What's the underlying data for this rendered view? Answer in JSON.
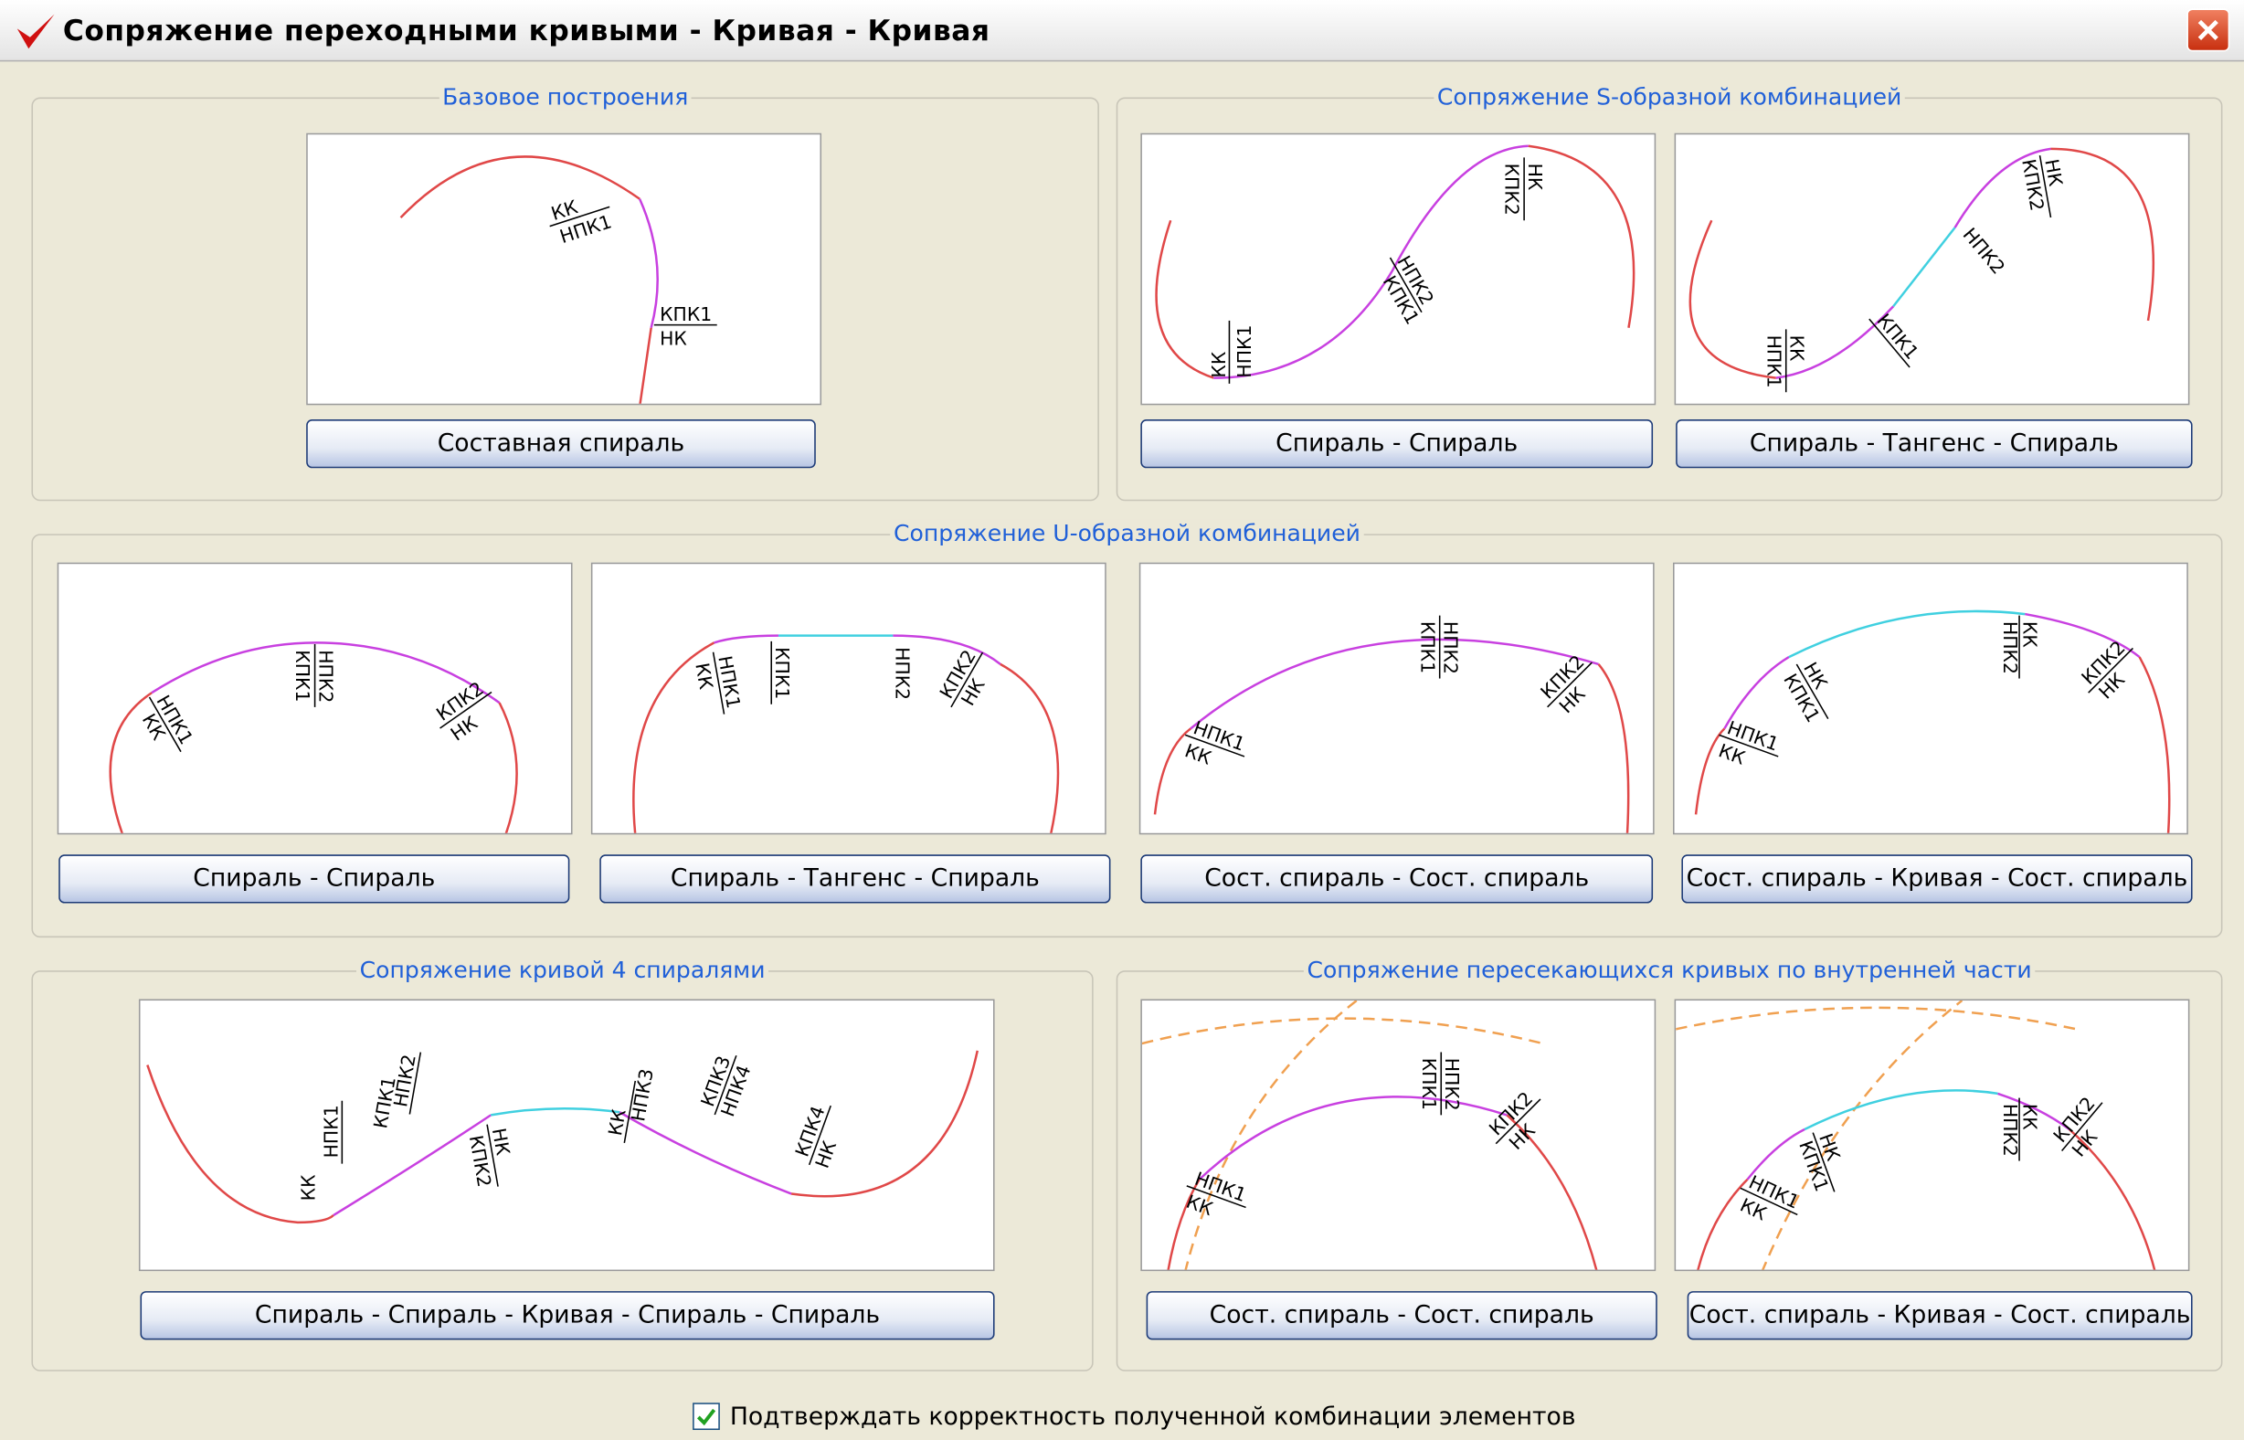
{
  "title": "Сопряжение переходными кривыми - Кривая - Кривая",
  "groups": [
    {
      "title": "Базовое построения",
      "panels": [
        {
          "button": "Составная спираль",
          "labels": [
            "КК",
            "НПК1",
            "КПК1",
            "НК"
          ]
        }
      ]
    },
    {
      "title": "Сопряжение S-образной комбинацией",
      "panels": [
        {
          "button": "Спираль - Спираль",
          "labels": [
            "КК",
            "НПК1",
            "НПК2",
            "КПК1",
            "НК",
            "КПК2"
          ]
        },
        {
          "button": "Спираль - Тангенс - Спираль",
          "labels": [
            "КК",
            "НПК1",
            "КПК1",
            "НПК2",
            "НК",
            "КПК2"
          ]
        }
      ]
    },
    {
      "title": "Сопряжение U-образной комбинацией",
      "panels": [
        {
          "button": "Спираль - Спираль",
          "labels": [
            "НПК1",
            "КК",
            "НПК2",
            "КПК1",
            "КПК2",
            "НК"
          ]
        },
        {
          "button": "Спираль - Тангенс - Спираль",
          "labels": [
            "НПК1",
            "КК",
            "КПК1",
            "НПК2",
            "КПК2",
            "НК"
          ]
        },
        {
          "button": "Сост. спираль - Сост. спираль",
          "labels": [
            "НПК1",
            "КК",
            "НПК2",
            "КПК1",
            "КПК2",
            "НК"
          ]
        },
        {
          "button": "Сост. спираль - Кривая - Сост. спираль",
          "labels": [
            "НПК1",
            "КК",
            "НК",
            "КПК1",
            "КК",
            "НПК2",
            "КПК2",
            "НК"
          ]
        }
      ]
    },
    {
      "title": "Сопряжение кривой 4 спиралями",
      "panels": [
        {
          "button": "Спираль - Спираль - Кривая - Спираль - Спираль",
          "labels": [
            "НПК1",
            "КК",
            "НПК2",
            "КПК1",
            "НК",
            "КПК2",
            "КК",
            "НПК3",
            "КПК3",
            "НПК4",
            "КПК4",
            "НК"
          ]
        }
      ]
    },
    {
      "title": "Сопряжение пересекающихся кривых по внутренней части",
      "panels": [
        {
          "button": "Сост. спираль - Сост. спираль",
          "labels": [
            "НПК1",
            "КК",
            "НПК2",
            "КПК1",
            "КПК2",
            "НК"
          ]
        },
        {
          "button": "Сост. спираль - Кривая - Сост. спираль",
          "labels": [
            "НПК1",
            "КК",
            "НК",
            "КПК1",
            "КК",
            "НПК2",
            "КПК2",
            "НК"
          ]
        }
      ]
    }
  ],
  "checkbox": "Подтверждать корректность полученной комбинации элементов"
}
